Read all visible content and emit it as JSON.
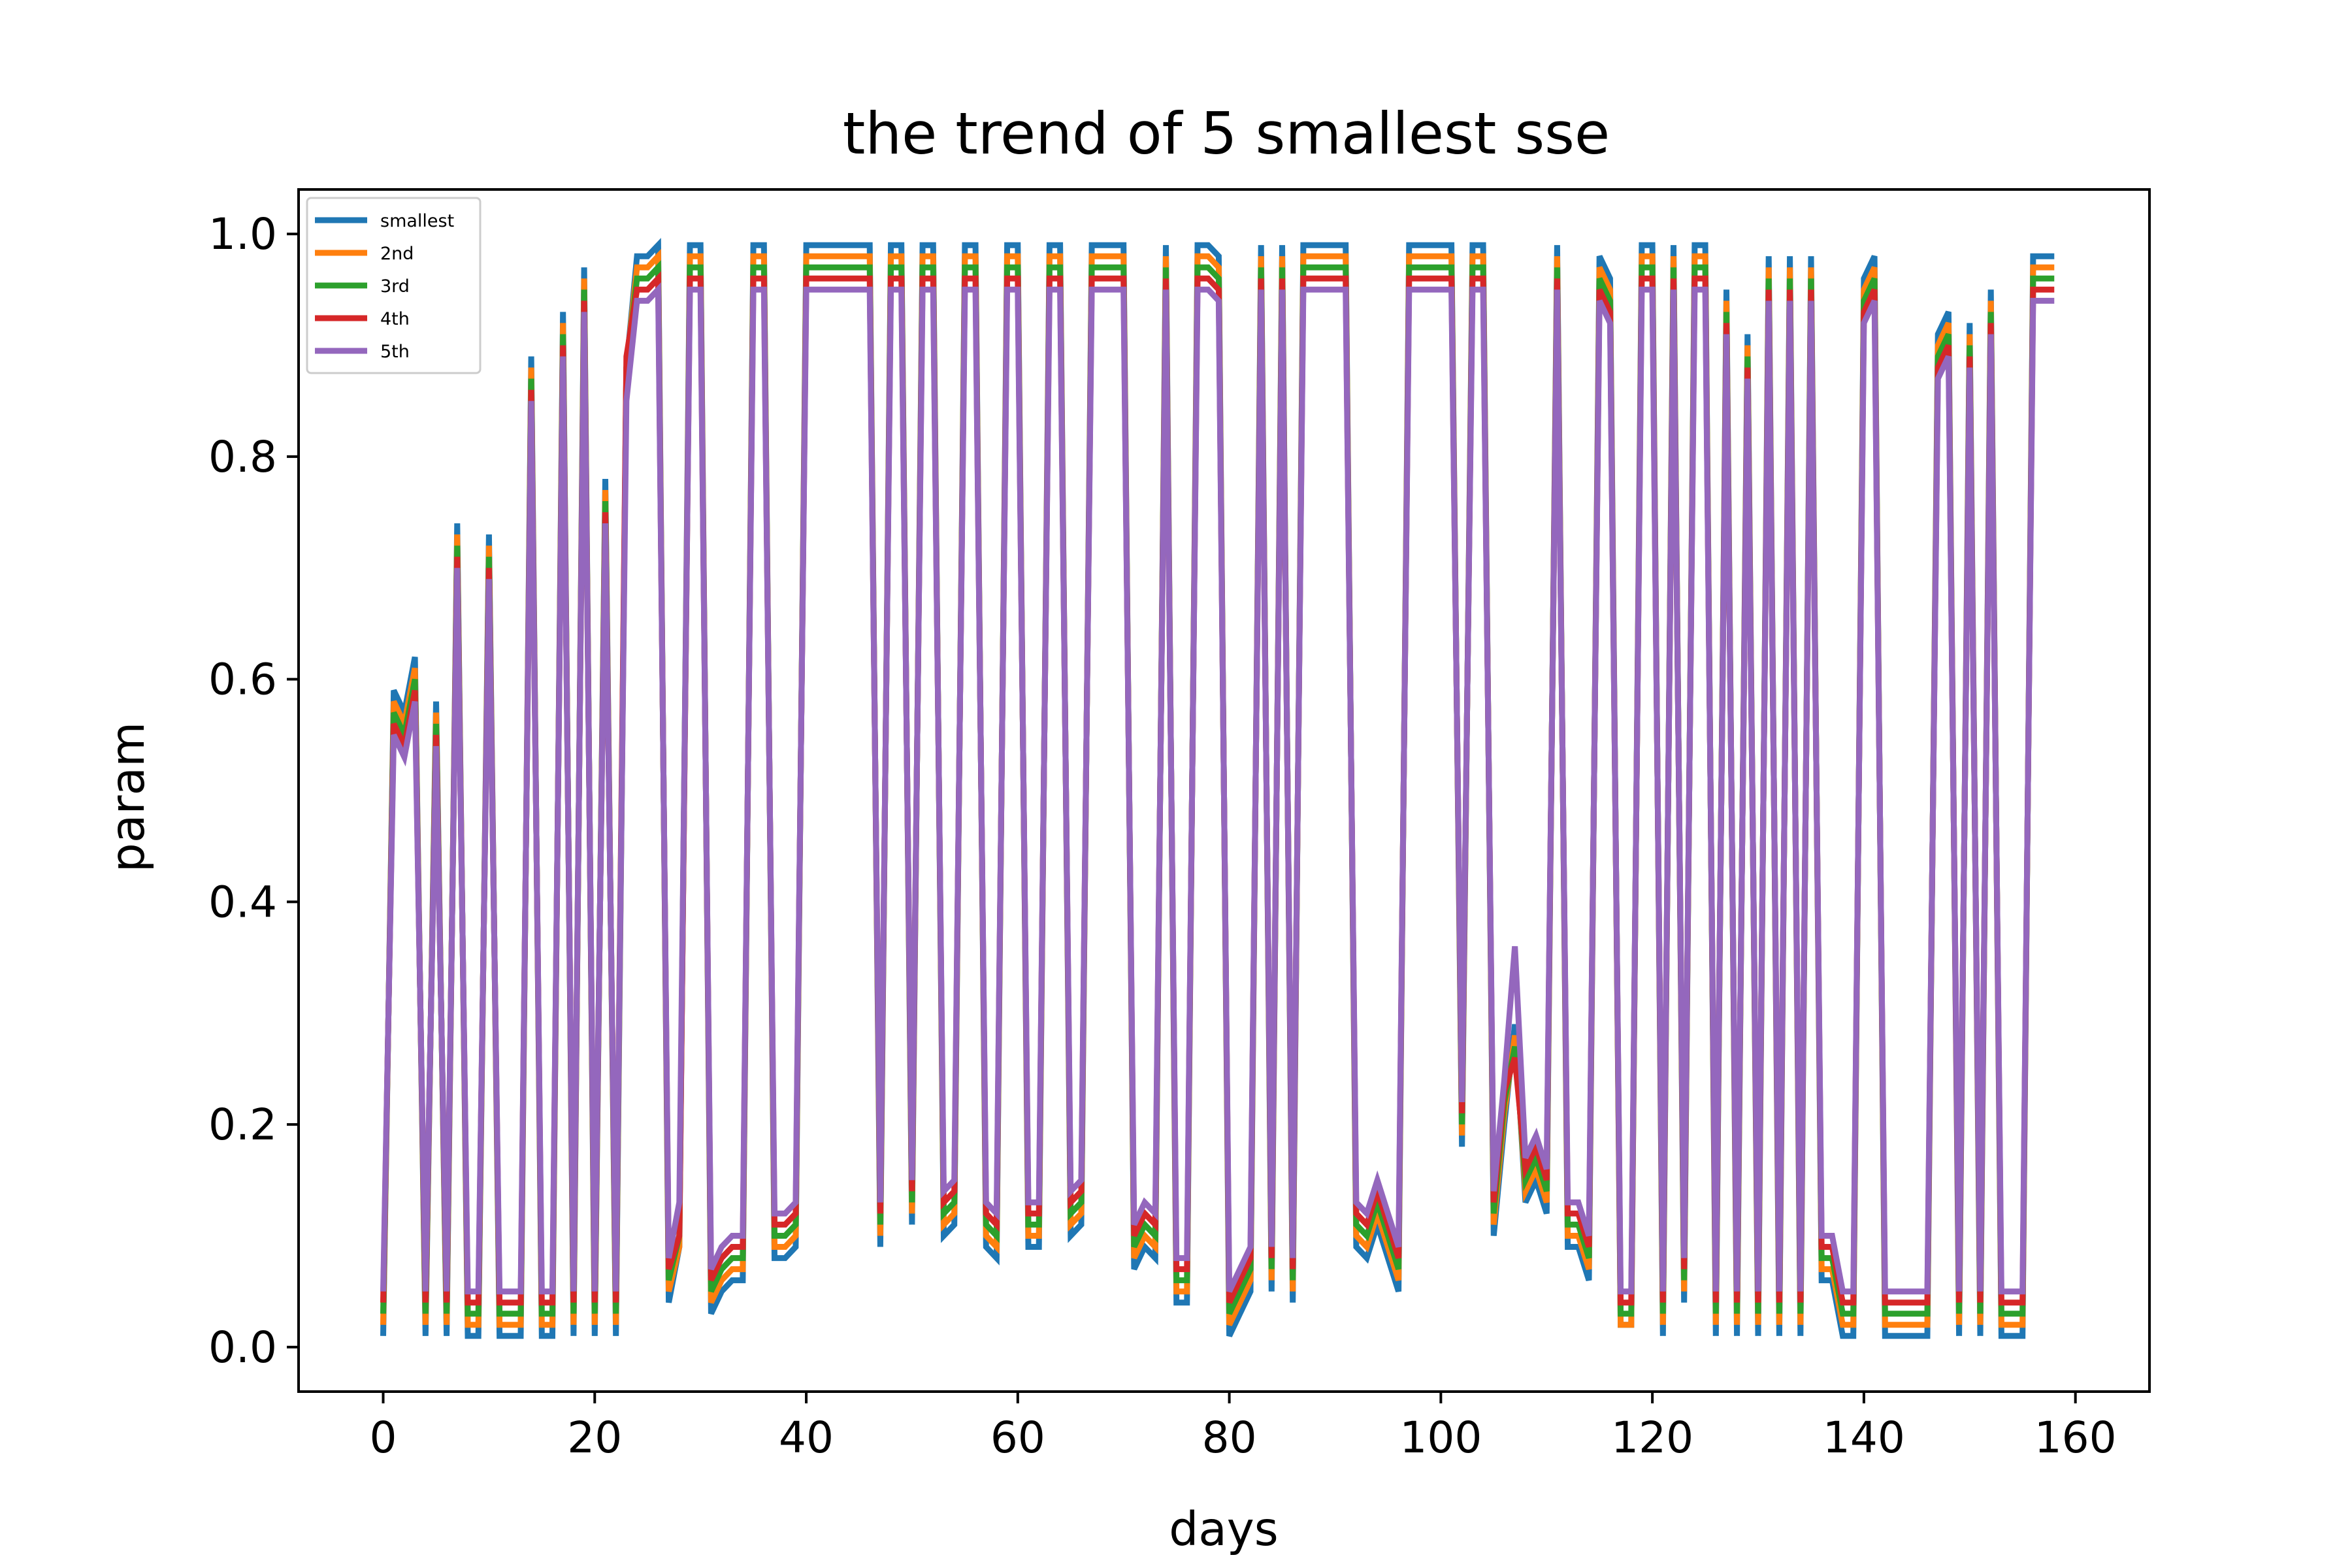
{
  "chart_data": {
    "type": "line",
    "title": "the trend of 5 smallest sse",
    "xlabel": "days",
    "ylabel": "param",
    "xlim": [
      -8,
      167
    ],
    "ylim": [
      -0.04,
      1.04
    ],
    "xticks": [
      0,
      20,
      40,
      60,
      80,
      100,
      120,
      140,
      160
    ],
    "yticks": [
      0.0,
      0.2,
      0.4,
      0.6,
      0.8,
      1.0
    ],
    "xtick_labels": [
      "0",
      "20",
      "40",
      "60",
      "80",
      "100",
      "120",
      "140",
      "160"
    ],
    "ytick_labels": [
      "0.0",
      "0.2",
      "0.4",
      "0.6",
      "0.8",
      "1.0"
    ],
    "grid": false,
    "legend_position": "upper left",
    "x": [
      0,
      1,
      2,
      3,
      4,
      5,
      6,
      7,
      8,
      9,
      10,
      11,
      12,
      13,
      14,
      15,
      16,
      17,
      18,
      19,
      20,
      21,
      22,
      23,
      24,
      25,
      26,
      27,
      28,
      29,
      30,
      31,
      32,
      33,
      34,
      35,
      36,
      37,
      38,
      39,
      40,
      41,
      42,
      43,
      44,
      45,
      46,
      47,
      48,
      49,
      50,
      51,
      52,
      53,
      54,
      55,
      56,
      57,
      58,
      59,
      60,
      61,
      62,
      63,
      64,
      65,
      66,
      67,
      68,
      69,
      70,
      71,
      72,
      73,
      74,
      75,
      76,
      77,
      78,
      79,
      80,
      81,
      82,
      83,
      84,
      85,
      86,
      87,
      88,
      89,
      90,
      91,
      92,
      93,
      94,
      95,
      96,
      97,
      98,
      99,
      100,
      101,
      102,
      103,
      104,
      105,
      106,
      107,
      108,
      109,
      110,
      111,
      112,
      113,
      114,
      115,
      116,
      117,
      118,
      119,
      120,
      121,
      122,
      123,
      124,
      125,
      126,
      127,
      128,
      129,
      130,
      131,
      132,
      133,
      134,
      135,
      136,
      137,
      138,
      139,
      140,
      141,
      142,
      143,
      144,
      145,
      146,
      147,
      148,
      149,
      150,
      151,
      152,
      153,
      154,
      155,
      156,
      157,
      158
    ],
    "series": [
      {
        "name": "smallest",
        "color": "#1f77b4",
        "values": [
          0.01,
          0.59,
          0.57,
          0.62,
          0.01,
          0.58,
          0.01,
          0.74,
          0.01,
          0.01,
          0.73,
          0.01,
          0.01,
          0.01,
          0.89,
          0.01,
          0.01,
          0.93,
          0.01,
          0.97,
          0.01,
          0.78,
          0.01,
          0.88,
          0.98,
          0.98,
          0.99,
          0.04,
          0.09,
          0.99,
          0.99,
          0.03,
          0.05,
          0.06,
          0.06,
          0.99,
          0.99,
          0.08,
          0.08,
          0.09,
          0.99,
          0.99,
          0.99,
          0.99,
          0.99,
          0.99,
          0.99,
          0.09,
          0.99,
          0.99,
          0.11,
          0.99,
          0.99,
          0.1,
          0.11,
          0.99,
          0.99,
          0.09,
          0.08,
          0.99,
          0.99,
          0.09,
          0.09,
          0.99,
          0.99,
          0.1,
          0.11,
          0.99,
          0.99,
          0.99,
          0.99,
          0.07,
          0.09,
          0.08,
          0.99,
          0.04,
          0.04,
          0.99,
          0.99,
          0.98,
          0.01,
          0.03,
          0.05,
          0.99,
          0.05,
          0.99,
          0.04,
          0.99,
          0.99,
          0.99,
          0.99,
          0.99,
          0.09,
          0.08,
          0.11,
          0.08,
          0.05,
          0.99,
          0.99,
          0.99,
          0.99,
          0.99,
          0.18,
          0.99,
          0.99,
          0.1,
          0.2,
          0.29,
          0.13,
          0.15,
          0.12,
          0.99,
          0.09,
          0.09,
          0.06,
          0.98,
          0.96,
          0.02,
          0.02,
          0.99,
          0.99,
          0.01,
          0.99,
          0.04,
          0.99,
          0.99,
          0.01,
          0.95,
          0.01,
          0.91,
          0.01,
          0.98,
          0.01,
          0.98,
          0.01,
          0.98,
          0.06,
          0.06,
          0.01,
          0.01,
          0.96,
          0.98,
          0.01,
          0.01,
          0.01,
          0.01,
          0.01,
          0.91,
          0.93,
          0.01,
          0.92,
          0.01,
          0.95,
          0.01,
          0.01,
          0.01,
          0.98,
          0.98,
          0.98
        ]
      },
      {
        "name": "2nd",
        "color": "#ff7f0e",
        "values": [
          0.02,
          0.58,
          0.56,
          0.61,
          0.02,
          0.57,
          0.02,
          0.73,
          0.02,
          0.02,
          0.72,
          0.02,
          0.02,
          0.02,
          0.88,
          0.02,
          0.02,
          0.92,
          0.02,
          0.96,
          0.02,
          0.77,
          0.02,
          0.88,
          0.97,
          0.97,
          0.98,
          0.05,
          0.09,
          0.98,
          0.98,
          0.04,
          0.06,
          0.07,
          0.07,
          0.98,
          0.98,
          0.09,
          0.09,
          0.1,
          0.98,
          0.98,
          0.98,
          0.98,
          0.98,
          0.98,
          0.98,
          0.1,
          0.98,
          0.98,
          0.12,
          0.98,
          0.98,
          0.11,
          0.12,
          0.98,
          0.98,
          0.1,
          0.09,
          0.98,
          0.98,
          0.1,
          0.1,
          0.98,
          0.98,
          0.11,
          0.12,
          0.98,
          0.98,
          0.98,
          0.98,
          0.08,
          0.1,
          0.09,
          0.98,
          0.05,
          0.05,
          0.98,
          0.98,
          0.97,
          0.02,
          0.04,
          0.06,
          0.98,
          0.06,
          0.98,
          0.05,
          0.98,
          0.98,
          0.98,
          0.98,
          0.98,
          0.1,
          0.09,
          0.12,
          0.09,
          0.06,
          0.98,
          0.98,
          0.98,
          0.98,
          0.98,
          0.19,
          0.98,
          0.98,
          0.11,
          0.21,
          0.28,
          0.14,
          0.16,
          0.13,
          0.98,
          0.1,
          0.1,
          0.07,
          0.97,
          0.95,
          0.02,
          0.02,
          0.98,
          0.98,
          0.02,
          0.98,
          0.05,
          0.98,
          0.98,
          0.02,
          0.94,
          0.02,
          0.9,
          0.02,
          0.97,
          0.02,
          0.97,
          0.02,
          0.97,
          0.07,
          0.07,
          0.02,
          0.02,
          0.95,
          0.97,
          0.02,
          0.02,
          0.02,
          0.02,
          0.02,
          0.9,
          0.92,
          0.02,
          0.91,
          0.02,
          0.94,
          0.02,
          0.02,
          0.02,
          0.97,
          0.97,
          0.97
        ]
      },
      {
        "name": "3rd",
        "color": "#2ca02c",
        "values": [
          0.03,
          0.57,
          0.55,
          0.6,
          0.03,
          0.56,
          0.03,
          0.72,
          0.03,
          0.03,
          0.71,
          0.03,
          0.03,
          0.03,
          0.87,
          0.03,
          0.03,
          0.91,
          0.03,
          0.95,
          0.03,
          0.76,
          0.03,
          0.88,
          0.96,
          0.96,
          0.97,
          0.06,
          0.1,
          0.97,
          0.97,
          0.05,
          0.07,
          0.08,
          0.08,
          0.97,
          0.97,
          0.1,
          0.1,
          0.11,
          0.97,
          0.97,
          0.97,
          0.97,
          0.97,
          0.97,
          0.97,
          0.11,
          0.97,
          0.97,
          0.13,
          0.97,
          0.97,
          0.12,
          0.13,
          0.97,
          0.97,
          0.11,
          0.1,
          0.97,
          0.97,
          0.11,
          0.11,
          0.97,
          0.97,
          0.12,
          0.13,
          0.97,
          0.97,
          0.97,
          0.97,
          0.09,
          0.11,
          0.1,
          0.97,
          0.06,
          0.06,
          0.97,
          0.97,
          0.96,
          0.03,
          0.05,
          0.07,
          0.97,
          0.07,
          0.97,
          0.06,
          0.97,
          0.97,
          0.97,
          0.97,
          0.97,
          0.11,
          0.1,
          0.13,
          0.1,
          0.07,
          0.97,
          0.97,
          0.97,
          0.97,
          0.97,
          0.2,
          0.97,
          0.97,
          0.12,
          0.22,
          0.27,
          0.15,
          0.17,
          0.14,
          0.97,
          0.11,
          0.11,
          0.08,
          0.96,
          0.94,
          0.03,
          0.03,
          0.97,
          0.97,
          0.03,
          0.97,
          0.06,
          0.97,
          0.97,
          0.03,
          0.93,
          0.03,
          0.89,
          0.03,
          0.96,
          0.03,
          0.96,
          0.03,
          0.96,
          0.08,
          0.08,
          0.03,
          0.03,
          0.94,
          0.96,
          0.03,
          0.03,
          0.03,
          0.03,
          0.03,
          0.89,
          0.91,
          0.03,
          0.9,
          0.03,
          0.93,
          0.03,
          0.03,
          0.03,
          0.96,
          0.96,
          0.96
        ]
      },
      {
        "name": "4th",
        "color": "#d62728",
        "values": [
          0.04,
          0.56,
          0.54,
          0.59,
          0.04,
          0.55,
          0.04,
          0.71,
          0.04,
          0.04,
          0.7,
          0.04,
          0.04,
          0.04,
          0.86,
          0.04,
          0.04,
          0.9,
          0.04,
          0.94,
          0.04,
          0.75,
          0.04,
          0.89,
          0.95,
          0.95,
          0.96,
          0.07,
          0.1,
          0.96,
          0.96,
          0.06,
          0.08,
          0.09,
          0.09,
          0.96,
          0.96,
          0.11,
          0.11,
          0.12,
          0.96,
          0.96,
          0.96,
          0.96,
          0.96,
          0.96,
          0.96,
          0.12,
          0.96,
          0.96,
          0.14,
          0.96,
          0.96,
          0.13,
          0.14,
          0.96,
          0.96,
          0.12,
          0.11,
          0.96,
          0.96,
          0.12,
          0.12,
          0.96,
          0.96,
          0.13,
          0.14,
          0.96,
          0.96,
          0.96,
          0.96,
          0.1,
          0.12,
          0.11,
          0.96,
          0.07,
          0.07,
          0.96,
          0.96,
          0.95,
          0.04,
          0.06,
          0.08,
          0.96,
          0.08,
          0.96,
          0.07,
          0.96,
          0.96,
          0.96,
          0.96,
          0.96,
          0.12,
          0.11,
          0.14,
          0.11,
          0.08,
          0.96,
          0.96,
          0.96,
          0.96,
          0.96,
          0.21,
          0.96,
          0.96,
          0.13,
          0.23,
          0.26,
          0.16,
          0.18,
          0.15,
          0.96,
          0.12,
          0.12,
          0.09,
          0.95,
          0.93,
          0.04,
          0.04,
          0.96,
          0.96,
          0.04,
          0.96,
          0.07,
          0.96,
          0.96,
          0.04,
          0.92,
          0.04,
          0.88,
          0.04,
          0.95,
          0.04,
          0.95,
          0.04,
          0.95,
          0.09,
          0.09,
          0.04,
          0.04,
          0.93,
          0.95,
          0.04,
          0.04,
          0.04,
          0.04,
          0.04,
          0.88,
          0.9,
          0.04,
          0.89,
          0.04,
          0.92,
          0.04,
          0.04,
          0.04,
          0.95,
          0.95,
          0.95
        ]
      },
      {
        "name": "5th",
        "color": "#9467bd",
        "values": [
          0.05,
          0.55,
          0.53,
          0.58,
          0.05,
          0.54,
          0.05,
          0.7,
          0.05,
          0.05,
          0.69,
          0.05,
          0.05,
          0.05,
          0.85,
          0.05,
          0.05,
          0.89,
          0.05,
          0.93,
          0.05,
          0.74,
          0.05,
          0.85,
          0.94,
          0.94,
          0.95,
          0.08,
          0.13,
          0.95,
          0.95,
          0.07,
          0.09,
          0.1,
          0.1,
          0.95,
          0.95,
          0.12,
          0.12,
          0.13,
          0.95,
          0.95,
          0.95,
          0.95,
          0.95,
          0.95,
          0.95,
          0.13,
          0.95,
          0.95,
          0.15,
          0.95,
          0.95,
          0.14,
          0.15,
          0.95,
          0.95,
          0.13,
          0.12,
          0.95,
          0.95,
          0.13,
          0.13,
          0.95,
          0.95,
          0.14,
          0.15,
          0.95,
          0.95,
          0.95,
          0.95,
          0.11,
          0.13,
          0.12,
          0.95,
          0.08,
          0.08,
          0.95,
          0.95,
          0.94,
          0.05,
          0.07,
          0.09,
          0.95,
          0.09,
          0.95,
          0.08,
          0.95,
          0.95,
          0.95,
          0.95,
          0.95,
          0.13,
          0.12,
          0.15,
          0.12,
          0.09,
          0.95,
          0.95,
          0.95,
          0.95,
          0.95,
          0.22,
          0.95,
          0.95,
          0.14,
          0.24,
          0.36,
          0.17,
          0.19,
          0.16,
          0.95,
          0.13,
          0.13,
          0.1,
          0.94,
          0.92,
          0.05,
          0.05,
          0.95,
          0.95,
          0.05,
          0.95,
          0.08,
          0.95,
          0.95,
          0.05,
          0.91,
          0.05,
          0.87,
          0.05,
          0.94,
          0.05,
          0.94,
          0.05,
          0.94,
          0.1,
          0.1,
          0.05,
          0.05,
          0.92,
          0.94,
          0.05,
          0.05,
          0.05,
          0.05,
          0.05,
          0.87,
          0.89,
          0.05,
          0.88,
          0.05,
          0.91,
          0.05,
          0.05,
          0.05,
          0.94,
          0.94,
          0.94
        ]
      }
    ]
  }
}
